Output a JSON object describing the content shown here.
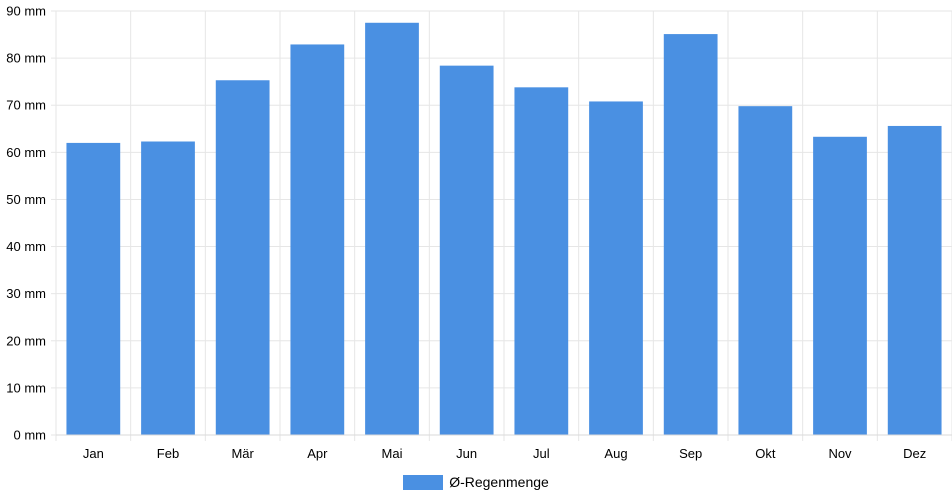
{
  "chart_data": {
    "type": "bar",
    "categories": [
      "Jan",
      "Feb",
      "Mär",
      "Apr",
      "Mai",
      "Jun",
      "Jul",
      "Aug",
      "Sep",
      "Okt",
      "Nov",
      "Dez"
    ],
    "series": [
      {
        "name": "Ø-Regenmenge",
        "values": [
          62,
          62.3,
          75.3,
          82.9,
          87.5,
          78.4,
          73.8,
          70.8,
          85.1,
          69.8,
          63.3,
          65.6
        ],
        "color": "#4a90e2"
      }
    ],
    "y_ticks": [
      "0 mm",
      "10 mm",
      "20 mm",
      "30 mm",
      "40 mm",
      "50 mm",
      "60 mm",
      "70 mm",
      "80 mm",
      "90 mm"
    ],
    "ylim": [
      0,
      90
    ],
    "grid": true,
    "legend_position": "bottom"
  }
}
